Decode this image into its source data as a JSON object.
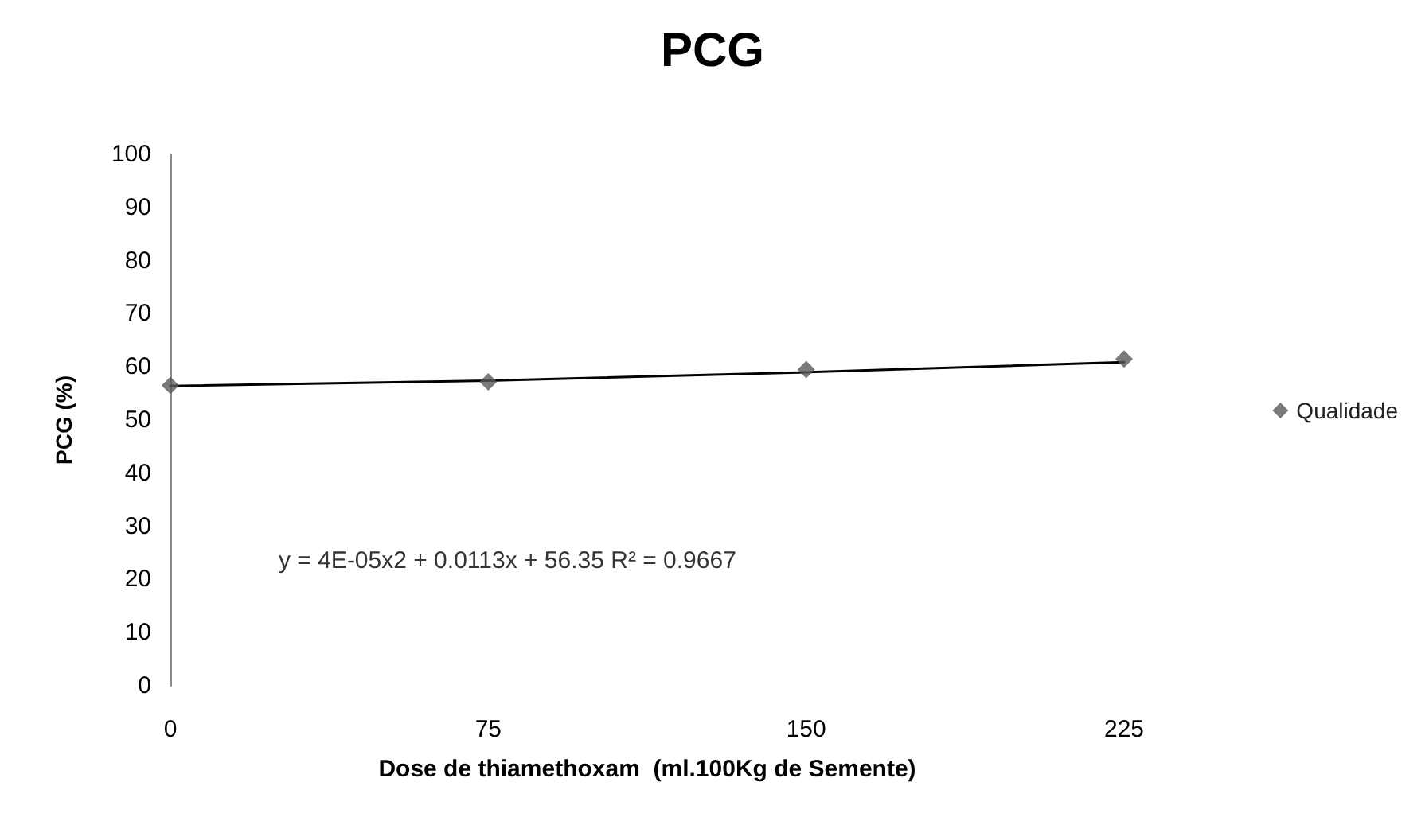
{
  "chart_data": {
    "type": "scatter",
    "title": "PCG",
    "xlabel": "Dose de thiamethoxam  (ml.100Kg de Semente)",
    "ylabel": "PCG (%)",
    "x": [
      0,
      75,
      150,
      225
    ],
    "xlim": [
      0,
      225
    ],
    "xticks": [
      0,
      75,
      150,
      225
    ],
    "ylim": [
      0,
      100
    ],
    "yticks": [
      0,
      10,
      20,
      30,
      40,
      50,
      60,
      70,
      80,
      90,
      100
    ],
    "series": [
      {
        "name": "Qualidade",
        "color": "#595959",
        "marker": "diamond",
        "values": [
          56.5,
          57.2,
          59.5,
          61.5
        ]
      },
      {
        "type": "line",
        "color": "#000000",
        "x": [
          0,
          75,
          150,
          225
        ],
        "values": [
          56.4,
          57.4,
          59.0,
          60.9
        ],
        "marker": "none",
        "line_style": "solid"
      }
    ],
    "annotations": [
      "y = 4E-05x2 + 0.0113x + 56.35 R² = 0.9667"
    ],
    "legend": "right",
    "grid": false
  }
}
